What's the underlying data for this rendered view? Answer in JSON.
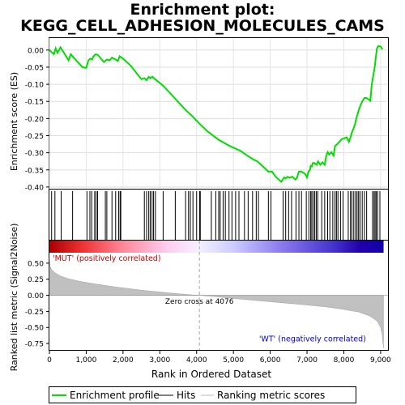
{
  "chart_data": {
    "type": "line",
    "title_line1": "Enrichment plot:",
    "title_line2": "KEGG_CELL_ADHESION_MOLECULES_CAMS",
    "xlabel": "Rank in Ordered Dataset",
    "xlim": [
      0,
      9200
    ],
    "x_ticks": [
      0,
      1000,
      2000,
      3000,
      4000,
      5000,
      6000,
      7000,
      8000,
      9000
    ],
    "x_tick_labels": [
      "0",
      "1,000",
      "2,000",
      "3,000",
      "4,000",
      "5,000",
      "6,000",
      "7,000",
      "8,000",
      "9,000"
    ],
    "es_panel": {
      "ylabel": "Enrichment score (ES)",
      "ylim": [
        -0.405,
        0.035
      ],
      "y_ticks": [
        0.0,
        -0.05,
        -0.1,
        -0.15,
        -0.2,
        -0.25,
        -0.3,
        -0.35,
        -0.4
      ],
      "y_tick_labels": [
        "0.00",
        "-0.05",
        "-0.10",
        "-0.15",
        "-0.20",
        "-0.25",
        "-0.30",
        "-0.35",
        "-0.40"
      ],
      "line_color": "#00dd00",
      "x": [
        0,
        120,
        170,
        220,
        300,
        350,
        520,
        580,
        640,
        900,
        1000,
        1060,
        1110,
        1160,
        1200,
        1260,
        1320,
        1480,
        1560,
        1640,
        1700,
        1800,
        1860,
        1910,
        2000,
        2200,
        2500,
        2580,
        2640,
        2700,
        2740,
        2800,
        2870,
        3100,
        3400,
        3700,
        3900,
        4076,
        4300,
        4600,
        4900,
        5200,
        5400,
        5550,
        5650,
        5800,
        5950,
        6050,
        6150,
        6300,
        6330,
        6380,
        6420,
        6470,
        6520,
        6600,
        6680,
        6720,
        6780,
        6850,
        6950,
        7000,
        7040,
        7080,
        7100,
        7130,
        7160,
        7200,
        7260,
        7300,
        7360,
        7420,
        7480,
        7520,
        7560,
        7600,
        7660,
        7720,
        7760,
        7820,
        7880,
        7940,
        8000,
        8080,
        8140,
        8180,
        8220,
        8260,
        8300,
        8340,
        8380,
        8420,
        8460,
        8500,
        8560,
        8620,
        8720,
        8760,
        8800,
        8840,
        8870,
        8900,
        8940,
        9000,
        9050
      ],
      "y": [
        0.0,
        -0.012,
        0.005,
        -0.008,
        0.008,
        0.0,
        -0.03,
        -0.012,
        -0.02,
        -0.05,
        -0.052,
        -0.03,
        -0.025,
        -0.028,
        -0.018,
        -0.012,
        -0.015,
        -0.035,
        -0.028,
        -0.03,
        -0.022,
        -0.028,
        -0.032,
        -0.018,
        -0.025,
        -0.045,
        -0.085,
        -0.082,
        -0.088,
        -0.078,
        -0.082,
        -0.078,
        -0.085,
        -0.105,
        -0.14,
        -0.175,
        -0.195,
        -0.215,
        -0.238,
        -0.262,
        -0.28,
        -0.295,
        -0.31,
        -0.32,
        -0.325,
        -0.34,
        -0.355,
        -0.355,
        -0.37,
        -0.385,
        -0.38,
        -0.372,
        -0.375,
        -0.37,
        -0.373,
        -0.37,
        -0.378,
        -0.375,
        -0.355,
        -0.355,
        -0.362,
        -0.372,
        -0.355,
        -0.35,
        -0.338,
        -0.34,
        -0.33,
        -0.33,
        -0.335,
        -0.325,
        -0.335,
        -0.328,
        -0.335,
        -0.31,
        -0.298,
        -0.305,
        -0.298,
        -0.308,
        -0.28,
        -0.275,
        -0.268,
        -0.26,
        -0.258,
        -0.255,
        -0.268,
        -0.255,
        -0.24,
        -0.23,
        -0.218,
        -0.2,
        -0.185,
        -0.17,
        -0.16,
        -0.15,
        -0.14,
        -0.14,
        -0.148,
        -0.1,
        -0.075,
        -0.05,
        -0.02,
        0.005,
        0.012,
        0.01,
        0.002
      ],
      "hit_x": [
        60,
        150,
        320,
        630,
        1020,
        1100,
        1150,
        1230,
        1270,
        1310,
        1520,
        1560,
        1700,
        1800,
        1880,
        1920,
        1940,
        2580,
        2640,
        2700,
        2740,
        2790,
        2830,
        2880,
        3090,
        3420,
        3700,
        3780,
        3830,
        3900,
        4000,
        4080,
        4100,
        4400,
        4520,
        4600,
        4640,
        4720,
        4780,
        4880,
        4960,
        5060,
        5150,
        5300,
        5400,
        5520,
        5620,
        5680,
        5950,
        6020,
        6350,
        6420,
        6500,
        6580,
        6700,
        6780,
        6850,
        6980,
        7050,
        7100,
        7130,
        7170,
        7210,
        7250,
        7290,
        7400,
        7480,
        7560,
        7620,
        7700,
        7760,
        7800,
        7840,
        7910,
        7980,
        8120,
        8180,
        8220,
        8270,
        8320,
        8360,
        8400,
        8440,
        8500,
        8560,
        8620,
        8780,
        8820,
        8850,
        8880,
        8920,
        8980
      ]
    },
    "metric_panel": {
      "ylabel": "Ranked list metric (Signal2Noise)",
      "ylim": [
        -0.85,
        0.65
      ],
      "y_ticks": [
        0.5,
        0.25,
        0.0,
        -0.25,
        -0.5,
        -0.75
      ],
      "y_tick_labels": [
        "0.50",
        "0.25",
        "0.00",
        "-0.25",
        "-0.50",
        "-0.75"
      ],
      "x": [
        0,
        20,
        60,
        150,
        300,
        500,
        800,
        1200,
        1800,
        2500,
        3200,
        3800,
        4076,
        4500,
        5200,
        6000,
        6800,
        7500,
        8000,
        8400,
        8700,
        8900,
        9000,
        9040,
        9060,
        9080
      ],
      "y": [
        0.58,
        0.45,
        0.4,
        0.35,
        0.3,
        0.26,
        0.22,
        0.18,
        0.13,
        0.08,
        0.04,
        0.01,
        0.0,
        -0.02,
        -0.06,
        -0.1,
        -0.14,
        -0.18,
        -0.22,
        -0.26,
        -0.32,
        -0.4,
        -0.5,
        -0.6,
        -0.72,
        -0.82
      ],
      "zero_cross_x": 4076,
      "zero_cross_label": "Zero cross at 4076",
      "pos_label": "'MUT' (positively correlated)",
      "neg_label": "'WT' (negatively correlated)",
      "pos_color": "#cc0000",
      "neg_color": "#0000cc"
    },
    "legend": {
      "placement": "bottom",
      "items": [
        {
          "label": "Enrichment profile",
          "color": "#00dd00"
        },
        {
          "label": "Hits",
          "color": "#000000"
        },
        {
          "label": "Ranking metric scores",
          "color": "#bbbbbb"
        }
      ]
    },
    "colors": {
      "es_line": "#00dd00",
      "hits": "#000000",
      "metric_fill": "#c0c0c0",
      "zero_line": "#aaaaaa"
    }
  }
}
